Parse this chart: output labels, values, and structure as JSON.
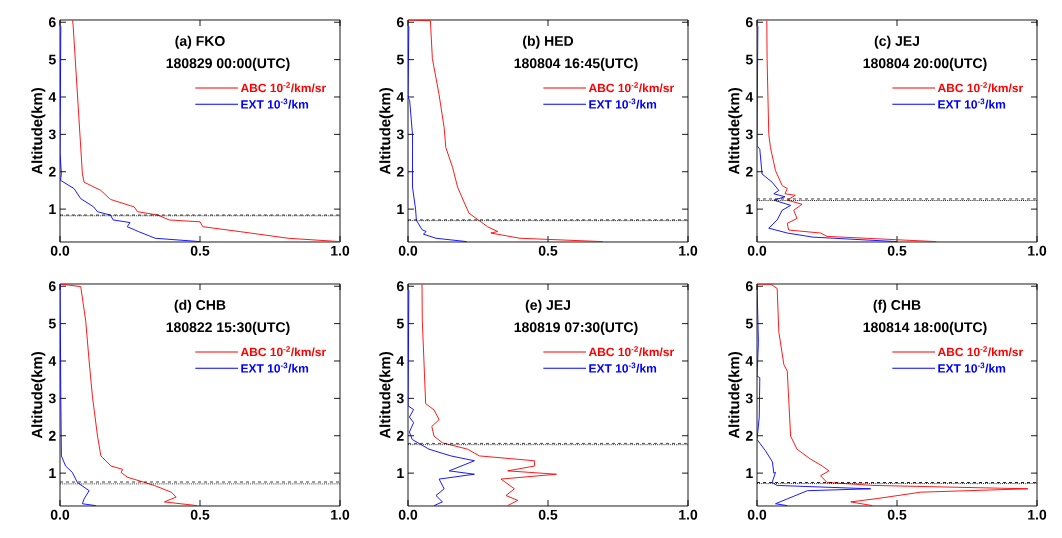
{
  "chart_data": [
    {
      "type": "line",
      "title": "(a) FKO",
      "subtitle": "180829  00:00(UTC)",
      "ylabel": "Altitude(km)",
      "legend": "top right",
      "xlim": [
        0,
        1
      ],
      "ylim": [
        0.12,
        6.06
      ],
      "xticks": [
        {
          "value": 0,
          "label": "0.0"
        },
        {
          "value": 0.5,
          "label": "0.5"
        },
        {
          "value": 1,
          "label": "1.0"
        }
      ],
      "yticks": [
        1,
        2,
        3,
        4,
        5,
        6
      ],
      "ref_lines": [
        {
          "axis": "y",
          "value": 0.84,
          "color": "#000000",
          "line_style": "dashed"
        },
        {
          "axis": "y",
          "value": 0.82,
          "color": "#000000",
          "line_style": "dotted"
        }
      ],
      "series": [
        {
          "name": "ABC 10$^{-2}$/km/sr",
          "color": "#ff0000",
          "x": [
            0.045,
            0.047,
            0.08,
            0.086,
            0.146,
            0.18,
            0.265,
            0.277,
            0.35,
            0.39,
            0.5,
            0.51,
            0.68,
            0.815,
            1.0
          ],
          "values": [
            6.05,
            5.9,
            1.94,
            1.72,
            1.5,
            1.26,
            1.06,
            0.93,
            0.84,
            0.71,
            0.66,
            0.53,
            0.36,
            0.22,
            0.13
          ]
        },
        {
          "name": "EXT 10$^{-3}$/km",
          "color": "#0000ff",
          "x": [
            0.003,
            0,
            0.005,
            0.002,
            0.05,
            0.074,
            0.12,
            0.134,
            0.18,
            0.19,
            0.25,
            0.24,
            0.28,
            0.34,
            0.5
          ],
          "values": [
            5.9,
            2.5,
            1.95,
            1.77,
            1.55,
            1.28,
            1.06,
            0.93,
            0.84,
            0.71,
            0.64,
            0.53,
            0.4,
            0.22,
            0.13
          ]
        }
      ]
    },
    {
      "type": "line",
      "title": "(b) HED",
      "subtitle": "180804  16:45(UTC)",
      "ylabel": "Altitude(km)",
      "legend": "top right",
      "xlim": [
        0,
        1
      ],
      "ylim": [
        0.12,
        6.06
      ],
      "xticks": [
        {
          "value": 0,
          "label": "0.0"
        },
        {
          "value": 0.5,
          "label": "0.5"
        },
        {
          "value": 1,
          "label": "1.0"
        }
      ],
      "yticks": [
        1,
        2,
        3,
        4,
        5,
        6
      ],
      "ref_lines": [
        {
          "axis": "y",
          "value": 0.71,
          "color": "#000000",
          "line_style": "dashed"
        },
        {
          "axis": "y",
          "value": 0.69,
          "color": "#000000",
          "line_style": "dotted"
        }
      ],
      "series": [
        {
          "name": "ABC 10$^{-2}$/km/sr",
          "color": "#ff0000",
          "x": [
            0,
            0.08,
            0.087,
            0.111,
            0.129,
            0.135,
            0.159,
            0.177,
            0.2,
            0.218,
            0.284,
            0.32,
            0.296,
            0.4,
            0.696
          ],
          "values": [
            6.06,
            6.04,
            5.03,
            4.06,
            3.18,
            2.65,
            2.12,
            1.59,
            1.19,
            0.89,
            0.53,
            0.4,
            0.36,
            0.22,
            0.13
          ]
        },
        {
          "name": "EXT 10$^{-3}$/km",
          "color": "#0000ff",
          "x": [
            0.003,
            0,
            0.006,
            0.016,
            0.016,
            0.027,
            0.03,
            0.05,
            0.065,
            0.055,
            0.1,
            0.21
          ],
          "values": [
            5.9,
            4.0,
            3.9,
            3.0,
            1.59,
            1.0,
            0.7,
            0.45,
            0.4,
            0.33,
            0.22,
            0.13
          ]
        }
      ]
    },
    {
      "type": "line",
      "title": "(c) JEJ",
      "subtitle": "180804  20:00(UTC)",
      "ylabel": "Altitude(km)",
      "legend": "top right",
      "xlim": [
        0,
        1
      ],
      "ylim": [
        0.12,
        6.06
      ],
      "xticks": [
        {
          "value": 0,
          "label": "0.0"
        },
        {
          "value": 0.5,
          "label": "0.5"
        },
        {
          "value": 1,
          "label": "1.0"
        }
      ],
      "yticks": [
        1,
        2,
        3,
        4,
        5,
        6
      ],
      "ref_lines": [
        {
          "axis": "y",
          "value": 1.27,
          "color": "#000000",
          "line_style": "dashed"
        },
        {
          "axis": "y",
          "value": 1.23,
          "color": "#000000",
          "line_style": "dotted"
        }
      ],
      "series": [
        {
          "name": "ABC 10$^{-2}$/km/sr",
          "color": "#ff0000",
          "x": [
            0.035,
            0.036,
            0.042,
            0.048,
            0.066,
            0.09,
            0.108,
            0.1,
            0.137,
            0.108,
            0.161,
            0.131,
            0.143,
            0.108,
            0.113,
            0.227,
            0.25,
            0.64
          ],
          "values": [
            6.05,
            5.03,
            3.0,
            2.65,
            2.03,
            1.63,
            1.55,
            1.41,
            1.37,
            1.24,
            1.13,
            0.97,
            0.75,
            0.62,
            0.44,
            0.36,
            0.27,
            0.13
          ]
        },
        {
          "name": "EXT 10$^{-3}$/km",
          "color": "#0000ff",
          "x": [
            0.003,
            0,
            0.01,
            0.018,
            0.054,
            0.078,
            0.06,
            0.1,
            0.06,
            0.12,
            0.09,
            0.072,
            0.042,
            0.108,
            0.2,
            0.5
          ],
          "values": [
            5.9,
            2.7,
            2.6,
            1.94,
            1.72,
            1.5,
            1.41,
            1.33,
            1.24,
            1.1,
            0.97,
            0.71,
            0.49,
            0.36,
            0.25,
            0.13
          ]
        }
      ]
    },
    {
      "type": "line",
      "title": "(d) CHB",
      "subtitle": "180822  15:30(UTC)",
      "ylabel": "Altitude(km)",
      "legend": "top right",
      "xlim": [
        0,
        1
      ],
      "ylim": [
        0.12,
        6.06
      ],
      "xticks": [
        {
          "value": 0,
          "label": "0.0"
        },
        {
          "value": 0.5,
          "label": "0.5"
        },
        {
          "value": 1,
          "label": "1.0"
        }
      ],
      "yticks": [
        1,
        2,
        3,
        4,
        5,
        6
      ],
      "ref_lines": [
        {
          "axis": "y",
          "value": 0.76,
          "color": "#000000",
          "line_style": "dashed"
        },
        {
          "axis": "y",
          "value": 0.71,
          "color": "#000000",
          "line_style": "dotted"
        }
      ],
      "series": [
        {
          "name": "ABC 10$^{-2}$/km/sr",
          "color": "#ff0000",
          "x": [
            0,
            0.074,
            0.092,
            0.104,
            0.116,
            0.134,
            0.146,
            0.182,
            0.224,
            0.218,
            0.241,
            0.337,
            0.397,
            0.415,
            0.373,
            0.49
          ],
          "values": [
            6.06,
            5.99,
            5.06,
            4.0,
            3.04,
            1.99,
            1.46,
            1.19,
            1.1,
            1.02,
            0.89,
            0.67,
            0.49,
            0.36,
            0.23,
            0.13
          ]
        },
        {
          "name": "EXT 10$^{-3}$/km",
          "color": "#0000ff",
          "x": [
            0,
            0.003,
            0.005,
            0.02,
            0.044,
            0.062,
            0.104,
            0.086,
            0.08,
            0.128
          ],
          "values": [
            6.06,
            3.0,
            1.46,
            1.19,
            1.02,
            0.75,
            0.53,
            0.31,
            0.18,
            0.13
          ]
        }
      ]
    },
    {
      "type": "line",
      "title": "(e) JEJ",
      "subtitle": "180819  07:30(UTC)",
      "ylabel": "Altitude(km)",
      "legend": "top right",
      "xlim": [
        0,
        1
      ],
      "ylim": [
        0.12,
        6.06
      ],
      "xticks": [
        {
          "value": 0,
          "label": "0.0"
        },
        {
          "value": 0.5,
          "label": "0.5"
        },
        {
          "value": 1,
          "label": "1.0"
        }
      ],
      "yticks": [
        1,
        2,
        3,
        4,
        5,
        6
      ],
      "ref_lines": [
        {
          "axis": "y",
          "value": 1.8,
          "color": "#000000",
          "line_style": "dashed"
        },
        {
          "axis": "y",
          "value": 1.76,
          "color": "#000000",
          "line_style": "dotted"
        }
      ],
      "series": [
        {
          "name": "ABC 10$^{-2}$/km/sr",
          "color": "#ff0000",
          "x": [
            0.05,
            0.051,
            0.063,
            0.093,
            0.111,
            0.085,
            0.093,
            0.123,
            0.213,
            0.255,
            0.452,
            0.452,
            0.356,
            0.53,
            0.332,
            0.38,
            0.35,
            0.392,
            0.356
          ],
          "values": [
            6.05,
            5.1,
            2.86,
            2.69,
            2.43,
            2.25,
            1.99,
            1.81,
            1.64,
            1.46,
            1.33,
            1.19,
            1.06,
            0.97,
            0.84,
            0.58,
            0.4,
            0.27,
            0.13
          ]
        },
        {
          "name": "EXT 10$^{-3}$/km",
          "color": "#0000ff",
          "x": [
            0.003,
            0,
            0.02,
            0.005,
            0.02,
            0.005,
            0.015,
            0.075,
            0.153,
            0.237,
            0.147,
            0.237,
            0.111,
            0.129,
            0.1,
            0.123,
            0.093
          ],
          "values": [
            5.9,
            2.8,
            2.7,
            2.5,
            2.35,
            2.1,
            1.9,
            1.64,
            1.46,
            1.33,
            1.06,
            0.97,
            0.84,
            0.58,
            0.4,
            0.23,
            0.13
          ]
        }
      ]
    },
    {
      "type": "line",
      "title": "(f) CHB",
      "subtitle": "180814  18:00(UTC)",
      "ylabel": "Altitude(km)",
      "legend": "top right",
      "xlim": [
        0,
        1
      ],
      "ylim": [
        0.12,
        6.06
      ],
      "xticks": [
        {
          "value": 0,
          "label": "0.0"
        },
        {
          "value": 0.5,
          "label": "0.5"
        },
        {
          "value": 1,
          "label": "1.0"
        }
      ],
      "yticks": [
        1,
        2,
        3,
        4,
        5,
        6
      ],
      "ref_lines": [
        {
          "axis": "y",
          "value": 0.75,
          "color": "#000000",
          "line_style": "dashed"
        },
        {
          "axis": "y",
          "value": 0.72,
          "color": "#000000",
          "line_style": "dotted"
        }
      ],
      "series": [
        {
          "name": "ABC 10$^{-2}$/km/sr",
          "color": "#ff0000",
          "x": [
            0,
            0.05,
            0.072,
            0.078,
            0.096,
            0.108,
            0.12,
            0.143,
            0.19,
            0.233,
            0.257,
            0.227,
            0.25,
            0.418,
            0.967,
            0.585,
            0.43,
            0.335,
            0.412
          ],
          "values": [
            6.06,
            6.05,
            5.94,
            4.77,
            3.9,
            3.73,
            1.99,
            1.64,
            1.38,
            1.19,
            1.06,
            0.93,
            0.75,
            0.67,
            0.58,
            0.49,
            0.32,
            0.23,
            0.13
          ]
        },
        {
          "name": "EXT 10$^{-3}$/km",
          "color": "#0000ff",
          "x": [
            0,
            0.005,
            0,
            0.01,
            0.008,
            0,
            0.03,
            0.055,
            0.06,
            0.066,
            0.054,
            0.072,
            0.406,
            0.18,
            0.108,
            0.066,
            0.108
          ],
          "values": [
            6.06,
            4.5,
            3.6,
            3.55,
            2.5,
            1.9,
            1.6,
            1.3,
            1.0,
            1.02,
            0.75,
            0.67,
            0.58,
            0.53,
            0.31,
            0.18,
            0.13
          ]
        }
      ]
    }
  ]
}
